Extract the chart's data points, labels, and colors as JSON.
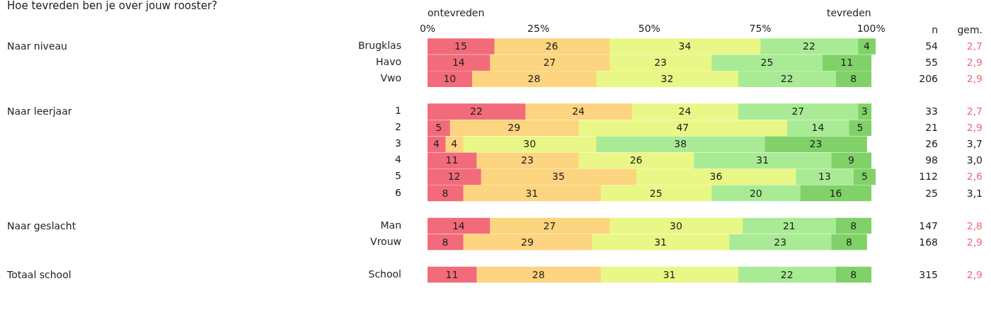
{
  "chart_data": {
    "type": "bar",
    "orientation": "horizontal",
    "stacked": true,
    "title": "Hoe tevreden ben je over jouw rooster?",
    "categories": [
      "Brugklas",
      "Havo",
      "Vwo",
      null,
      "1",
      "2",
      "3",
      "4",
      "5",
      "6",
      null,
      "Man",
      "Vrouw",
      null,
      "School"
    ],
    "series": [
      {
        "color": "#f26b7a",
        "values": [
          15,
          14,
          10,
          null,
          22,
          5,
          4,
          11,
          12,
          8,
          null,
          14,
          8,
          null,
          11
        ]
      },
      {
        "color": "#fdd47f",
        "values": [
          26,
          27,
          28,
          null,
          24,
          29,
          4,
          23,
          35,
          31,
          null,
          27,
          29,
          null,
          28
        ]
      },
      {
        "color": "#e9f786",
        "values": [
          34,
          23,
          32,
          null,
          24,
          47,
          30,
          26,
          36,
          25,
          null,
          30,
          31,
          null,
          31
        ]
      },
      {
        "color": "#a9eb94",
        "values": [
          22,
          25,
          22,
          null,
          27,
          14,
          38,
          31,
          13,
          20,
          null,
          21,
          23,
          null,
          22
        ]
      },
      {
        "color": "#80d268",
        "values": [
          4,
          11,
          8,
          null,
          3,
          5,
          23,
          9,
          5,
          16,
          null,
          8,
          8,
          null,
          8
        ]
      }
    ],
    "xlim": [
      0,
      101
    ],
    "xticks": [
      {
        "value": 0,
        "label": "0%"
      },
      {
        "value": 25,
        "label": "25%"
      },
      {
        "value": 50,
        "label": "50%"
      },
      {
        "value": 75,
        "label": "75%"
      },
      {
        "value": 100,
        "label": "100%"
      }
    ],
    "grid": false,
    "legend": false,
    "data_labels": true,
    "annotations": [
      "ontevreden",
      "tevreden",
      "n",
      "gem.",
      "Naar niveau",
      "Naar leerjaar",
      "Naar geslacht",
      "Totaal school",
      "54",
      "55",
      "206",
      "33",
      "21",
      "26",
      "98",
      "112",
      "25",
      "147",
      "168",
      "315",
      "2,7",
      "2,9",
      "2,9",
      "2,7",
      "2,9",
      "3,7",
      "3,0",
      "2,6",
      "3,1",
      "2,8",
      "2,9",
      "2,9"
    ]
  }
}
